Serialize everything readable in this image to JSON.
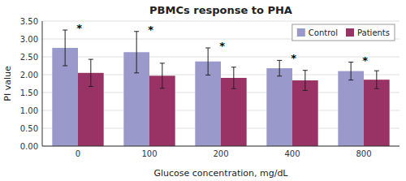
{
  "chart_data": {
    "type": "bar",
    "title": "PBMCs response to PHA",
    "xlabel": "Glucose concentration, mg/dL",
    "ylabel": "PI value",
    "categories": [
      "0",
      "100",
      "200",
      "400",
      "800"
    ],
    "series": [
      {
        "name": "Control",
        "color": "#9999CC",
        "values": [
          2.75,
          2.63,
          2.37,
          2.18,
          2.1
        ],
        "errors": [
          0.5,
          0.58,
          0.38,
          0.22,
          0.25
        ]
      },
      {
        "name": "Patients",
        "color": "#993366",
        "values": [
          2.05,
          1.97,
          1.91,
          1.84,
          1.86
        ],
        "errors": [
          0.38,
          0.35,
          0.3,
          0.28,
          0.25
        ]
      }
    ],
    "annotations": [
      "*",
      "*",
      "*",
      "*",
      "*"
    ],
    "ylim": [
      0.0,
      3.5
    ],
    "yticks": [
      {
        "value": 0.0,
        "label": "0.00"
      },
      {
        "value": 0.5,
        "label": "0.50"
      },
      {
        "value": 1.0,
        "label": "1.00"
      },
      {
        "value": 1.5,
        "label": "1.50"
      },
      {
        "value": 2.0,
        "label": "2.00"
      },
      {
        "value": 2.5,
        "label": "2.50"
      },
      {
        "value": 3.0,
        "label": "3.00"
      },
      {
        "value": 3.5,
        "label": "3.50"
      }
    ],
    "grid": true,
    "legend": "upper right"
  }
}
